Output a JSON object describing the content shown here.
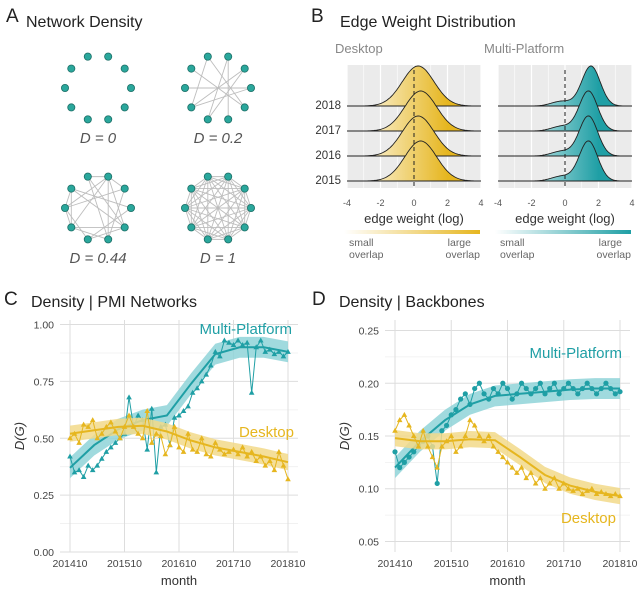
{
  "panels": {
    "A": {
      "letter": "A",
      "title": "Network Density"
    },
    "B": {
      "letter": "B",
      "title": "Edge Weight Distribution"
    },
    "C": {
      "letter": "C",
      "title": "Density | PMI Networks"
    },
    "D": {
      "letter": "D",
      "title": "Density | Backbones"
    }
  },
  "colors": {
    "teal": "#1f9fa5",
    "gold": "#e6b61f",
    "teal_band": "#8fd4d8",
    "gold_band": "#f2d98a",
    "grid": "#dddddd",
    "panel_bg": "#ebebeb",
    "node": "#2aa79c"
  },
  "chart_data": [
    {
      "id": "network_density",
      "type": "network",
      "title": "Network Density",
      "graphs": [
        {
          "label": "D = 0",
          "density": 0,
          "nodes": 10
        },
        {
          "label": "D = 0.2",
          "density": 0.2,
          "nodes": 10
        },
        {
          "label": "D = 0.44",
          "density": 0.44,
          "nodes": 10
        },
        {
          "label": "D = 1",
          "density": 1,
          "nodes": 10
        }
      ]
    },
    {
      "id": "edge_weight",
      "type": "ridgeline",
      "title": "Edge Weight Distribution",
      "facets": [
        "Desktop",
        "Multi-Platform"
      ],
      "years": [
        "2018",
        "2017",
        "2016",
        "2015"
      ],
      "xlabel": "edge weight (log)",
      "xlim": [
        -4,
        4
      ],
      "xticks": [
        "-4",
        "-2",
        "0",
        "2",
        "4"
      ],
      "peaks": {
        "Desktop": 0.3,
        "Multi-Platform": 1.4
      },
      "legend": {
        "left": [
          "small",
          "overlap"
        ],
        "right": [
          "large",
          "overlap"
        ]
      }
    },
    {
      "id": "pmi",
      "type": "line",
      "title": "Density | PMI Networks",
      "xlabel": "month",
      "ylabel": "D(G)",
      "xticks": [
        "201410",
        "201510",
        "201610",
        "201710",
        "201810"
      ],
      "yticks": [
        "0.00",
        "0.25",
        "0.50",
        "0.75",
        "1.00"
      ],
      "ylim": [
        0,
        1.02
      ],
      "series": [
        {
          "name": "Multi-Platform",
          "color": "teal",
          "marker": "triangle",
          "values": [
            0.42,
            0.35,
            0.36,
            0.33,
            0.38,
            0.36,
            0.38,
            0.41,
            0.44,
            0.46,
            0.48,
            0.5,
            0.52,
            0.68,
            0.55,
            0.6,
            0.58,
            0.45,
            0.63,
            0.35,
            0.55,
            0.56,
            0.47,
            0.59,
            0.6,
            0.62,
            0.64,
            0.7,
            0.72,
            0.75,
            0.78,
            0.82,
            0.88,
            0.86,
            0.93,
            0.92,
            0.91,
            0.93,
            0.91,
            0.92,
            0.7,
            0.9,
            0.93,
            0.88,
            0.89,
            0.87,
            0.88,
            0.86,
            0.88
          ],
          "smooth": [
            0.37,
            0.47,
            0.54,
            0.58,
            0.6,
            0.74,
            0.87,
            0.9,
            0.9,
            0.88
          ]
        },
        {
          "name": "Desktop",
          "color": "gold",
          "marker": "triangle",
          "values": [
            0.5,
            0.52,
            0.48,
            0.56,
            0.55,
            0.58,
            0.5,
            0.52,
            0.55,
            0.57,
            0.53,
            0.5,
            0.55,
            0.6,
            0.55,
            0.52,
            0.5,
            0.62,
            0.48,
            0.52,
            0.51,
            0.43,
            0.47,
            0.55,
            0.46,
            0.44,
            0.52,
            0.45,
            0.44,
            0.5,
            0.43,
            0.42,
            0.48,
            0.45,
            0.43,
            0.44,
            0.45,
            0.43,
            0.46,
            0.42,
            0.44,
            0.4,
            0.42,
            0.38,
            0.4,
            0.36,
            0.44,
            0.38,
            0.32
          ],
          "smooth": [
            0.52,
            0.535,
            0.55,
            0.555,
            0.53,
            0.49,
            0.46,
            0.44,
            0.42,
            0.395
          ]
        }
      ]
    },
    {
      "id": "backbones",
      "type": "line",
      "title": "Density | Backbones",
      "xlabel": "month",
      "ylabel": "D(G)",
      "xticks": [
        "201410",
        "201510",
        "201610",
        "201710",
        "201810"
      ],
      "yticks": [
        "0.05",
        "0.10",
        "0.15",
        "0.20",
        "0.25"
      ],
      "ylim": [
        0.04,
        0.26
      ],
      "series": [
        {
          "name": "Multi-Platform",
          "color": "teal",
          "marker": "circle",
          "values": [
            0.135,
            0.12,
            0.125,
            0.13,
            0.135,
            0.14,
            0.145,
            0.15,
            0.14,
            0.105,
            0.155,
            0.16,
            0.17,
            0.175,
            0.185,
            0.19,
            0.18,
            0.195,
            0.2,
            0.19,
            0.185,
            0.195,
            0.19,
            0.2,
            0.195,
            0.185,
            0.19,
            0.2,
            0.195,
            0.19,
            0.195,
            0.2,
            0.19,
            0.195,
            0.2,
            0.19,
            0.195,
            0.2,
            0.195,
            0.19,
            0.195,
            0.2,
            0.195,
            0.19,
            0.195,
            0.2,
            0.195,
            0.19,
            0.192
          ],
          "smooth": [
            0.12,
            0.145,
            0.165,
            0.18,
            0.188,
            0.19,
            0.192,
            0.194,
            0.195,
            0.195
          ]
        },
        {
          "name": "Desktop",
          "color": "gold",
          "marker": "triangle",
          "values": [
            0.155,
            0.165,
            0.17,
            0.16,
            0.15,
            0.14,
            0.155,
            0.14,
            0.13,
            0.12,
            0.14,
            0.145,
            0.15,
            0.135,
            0.14,
            0.15,
            0.165,
            0.16,
            0.15,
            0.145,
            0.15,
            0.14,
            0.135,
            0.13,
            0.125,
            0.12,
            0.115,
            0.12,
            0.11,
            0.115,
            0.105,
            0.11,
            0.1,
            0.105,
            0.11,
            0.1,
            0.105,
            0.1,
            0.098,
            0.1,
            0.095,
            0.098,
            0.1,
            0.095,
            0.097,
            0.095,
            0.093,
            0.095,
            0.093
          ],
          "smooth": [
            0.148,
            0.145,
            0.145,
            0.147,
            0.146,
            0.13,
            0.113,
            0.103,
            0.097,
            0.093
          ]
        }
      ]
    }
  ]
}
